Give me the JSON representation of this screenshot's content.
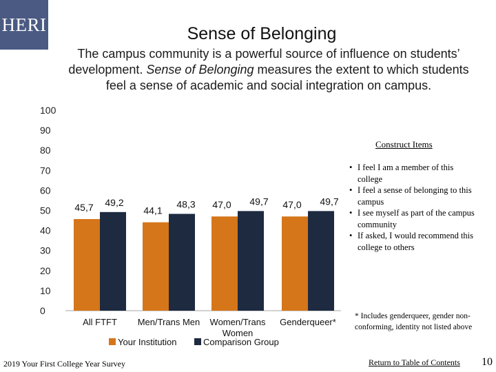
{
  "logo": {
    "text": "HERI"
  },
  "header": {
    "title": "Sense of Belonging",
    "desc_before": "The campus community is a powerful source of influence on students’ development. ",
    "desc_em": "Sense of Belonging",
    "desc_after": " measures the extent to which students feel a sense of academic and social integration on campus."
  },
  "chart_data": {
    "type": "bar",
    "categories": [
      "All FTFT",
      "Men/Trans Men",
      "Women/Trans Women",
      "Genderqueer*"
    ],
    "series": [
      {
        "name": "Your Institution",
        "values": [
          45.7,
          44.1,
          47.0,
          47.0
        ],
        "labels": [
          "45,7",
          "44,1",
          "47,0",
          "47,0"
        ],
        "color": "#d5761a"
      },
      {
        "name": "Comparison Group",
        "values": [
          49.2,
          48.3,
          49.7,
          49.7
        ],
        "labels": [
          "49,2",
          "48,3",
          "49,7",
          "49,7"
        ],
        "color": "#1d2a40"
      }
    ],
    "ylim": [
      0,
      100
    ],
    "yticks": [
      0,
      10,
      20,
      30,
      40,
      50,
      60,
      70,
      80,
      90,
      100
    ],
    "xlabel": "",
    "ylabel": "",
    "grid": false,
    "legend": "bottom"
  },
  "construct": {
    "title": "Construct Items",
    "items": [
      "I feel I am a member of this college",
      "I feel a sense of belonging to this campus",
      "I see myself as part of the campus community",
      "If asked, I would recommend this college to others"
    ]
  },
  "footnote": "* Includes genderqueer, gender non-conforming, identity not listed above",
  "footer": {
    "survey": "2019 Your First College Year Survey",
    "toc_link": "Return to Table of Contents",
    "page_number": "10"
  }
}
